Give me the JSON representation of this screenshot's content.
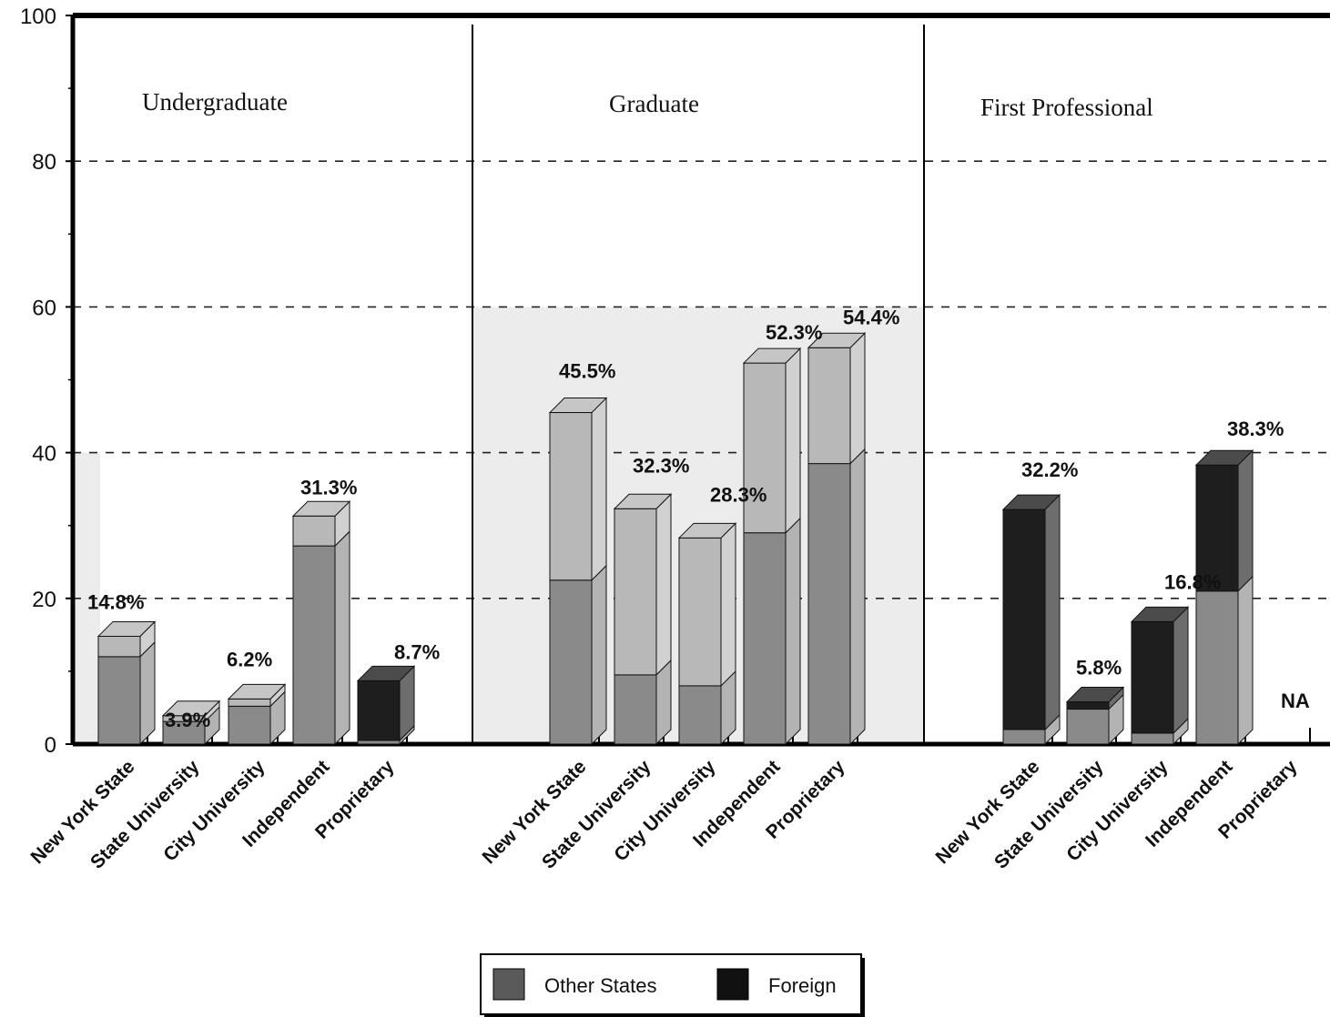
{
  "chart_data": {
    "type": "bar",
    "stacked": true,
    "y_ticks": [
      "0",
      "20",
      "40",
      "60",
      "80",
      "100"
    ],
    "ylim": [
      0,
      100
    ],
    "grid": "dashed horizontal at 20, 40, 60, 80",
    "legend": {
      "placement": "bottom-center",
      "entries": [
        "Other States",
        "Foreign"
      ]
    },
    "colors": {
      "other_states": "#8a8a8a",
      "foreign": "#1e1e1e",
      "combined_top": "#b8b8b8",
      "highlight_panel": "#ececec"
    },
    "panels": [
      {
        "name": "Undergraduate",
        "categories": [
          "New York State",
          "State University",
          "City University",
          "Independent",
          "Proprietary"
        ],
        "series": [
          {
            "name": "Other States",
            "values": [
              12.0,
              3.1,
              5.2,
              27.2,
              0.5
            ]
          },
          {
            "name": "Foreign",
            "values": [
              2.8,
              0.8,
              1.0,
              4.1,
              8.2
            ]
          }
        ],
        "totals": [
          14.8,
          3.9,
          6.2,
          31.3,
          8.7
        ],
        "labels": [
          "14.8%",
          "3.9%",
          "6.2%",
          "31.3%",
          "8.7%"
        ]
      },
      {
        "name": "Graduate",
        "categories": [
          "New York State",
          "State University",
          "City University",
          "Independent",
          "Proprietary"
        ],
        "series": [
          {
            "name": "Other States",
            "values": [
              22.5,
              9.5,
              8.0,
              29.0,
              38.5
            ]
          },
          {
            "name": "Foreign",
            "values": [
              23.0,
              22.8,
              20.3,
              23.3,
              15.9
            ]
          }
        ],
        "totals": [
          45.5,
          32.3,
          28.3,
          52.3,
          54.4
        ],
        "labels": [
          "45.5%",
          "32.3%",
          "28.3%",
          "52.3%",
          "54.4%"
        ]
      },
      {
        "name": "First Professional",
        "categories": [
          "New York State",
          "State University",
          "City University",
          "Independent",
          "Proprietary"
        ],
        "series": [
          {
            "name": "Other States",
            "values": [
              2.0,
              4.8,
              1.5,
              21.0,
              null
            ]
          },
          {
            "name": "Foreign",
            "values": [
              30.2,
              1.0,
              15.3,
              17.3,
              null
            ]
          }
        ],
        "totals": [
          32.2,
          5.8,
          16.8,
          38.3,
          null
        ],
        "labels": [
          "32.2%",
          "5.8%",
          "16.8%",
          "38.3%",
          "NA"
        ]
      }
    ]
  }
}
